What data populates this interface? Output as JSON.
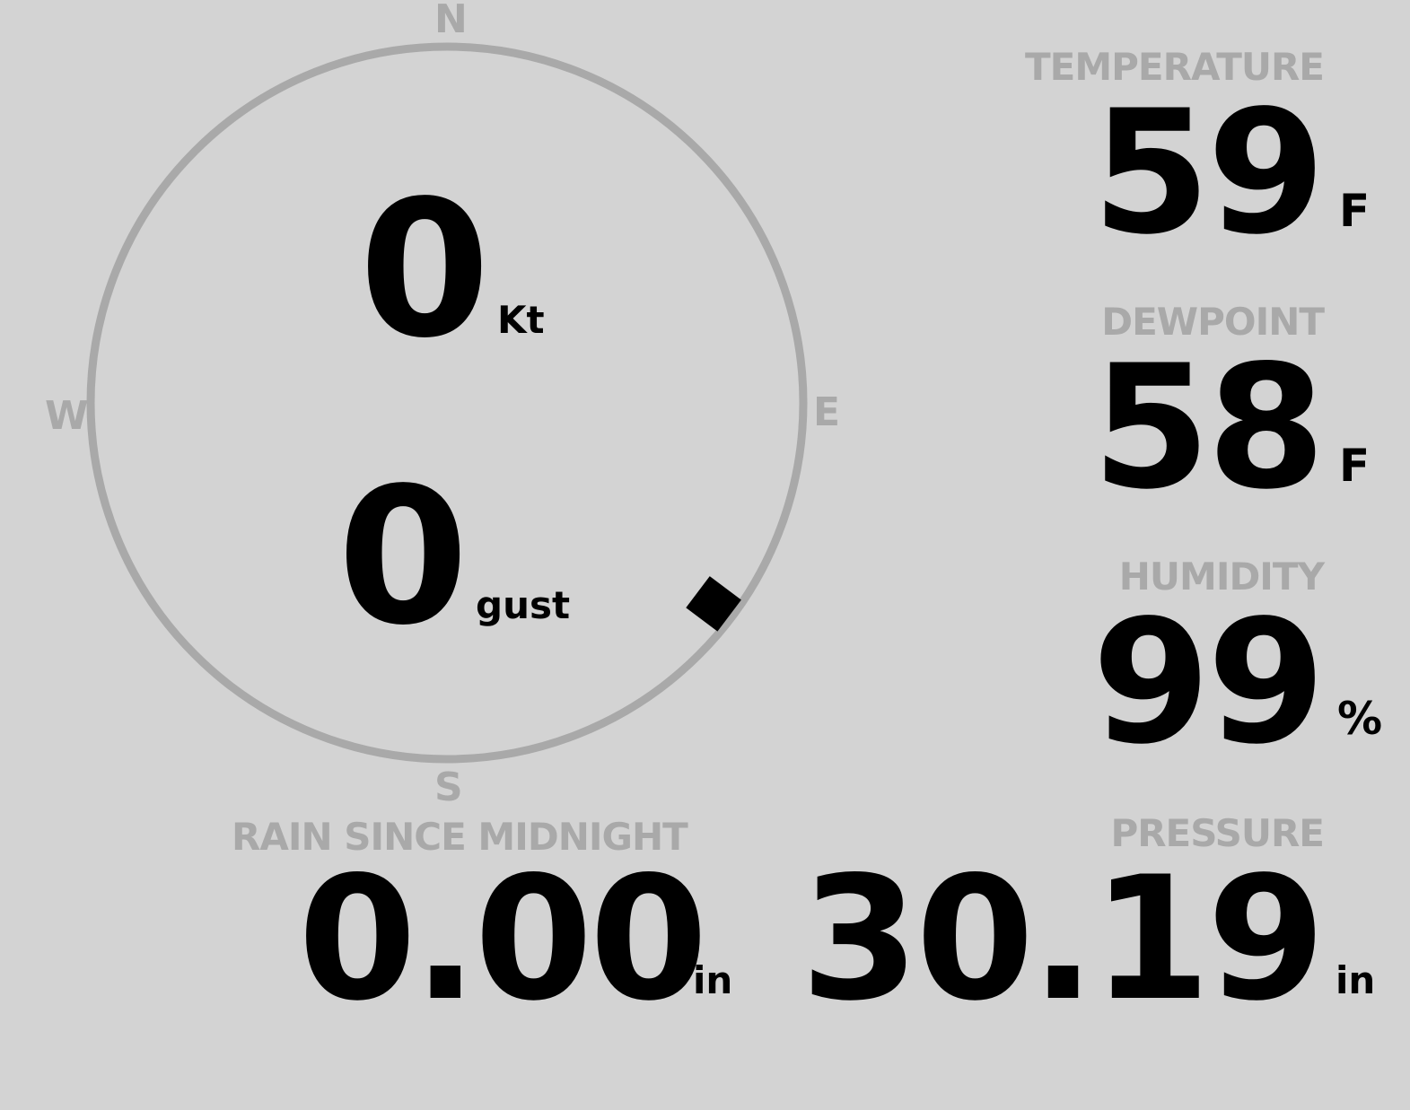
{
  "compass": {
    "north": "N",
    "south": "S",
    "east": "E",
    "west": "W",
    "wind_direction_deg": 127,
    "ring_color": "#a9a9a9",
    "marker_color": "#000000"
  },
  "wind": {
    "speed": "0",
    "speed_unit": "Kt",
    "gust": "0",
    "gust_unit": "gust"
  },
  "temperature": {
    "label": "TEMPERATURE",
    "value": "59",
    "unit": "F"
  },
  "dewpoint": {
    "label": "DEWPOINT",
    "value": "58",
    "unit": "F"
  },
  "humidity": {
    "label": "HUMIDITY",
    "value": "99",
    "unit": "%"
  },
  "rain": {
    "label": "RAIN SINCE MIDNIGHT",
    "value": "0.00",
    "unit": "in"
  },
  "pressure": {
    "label": "PRESSURE",
    "value": "30.19",
    "unit": "in"
  },
  "colors": {
    "background": "#d3d3d3",
    "label": "#a9a9a9",
    "value": "#000000"
  }
}
